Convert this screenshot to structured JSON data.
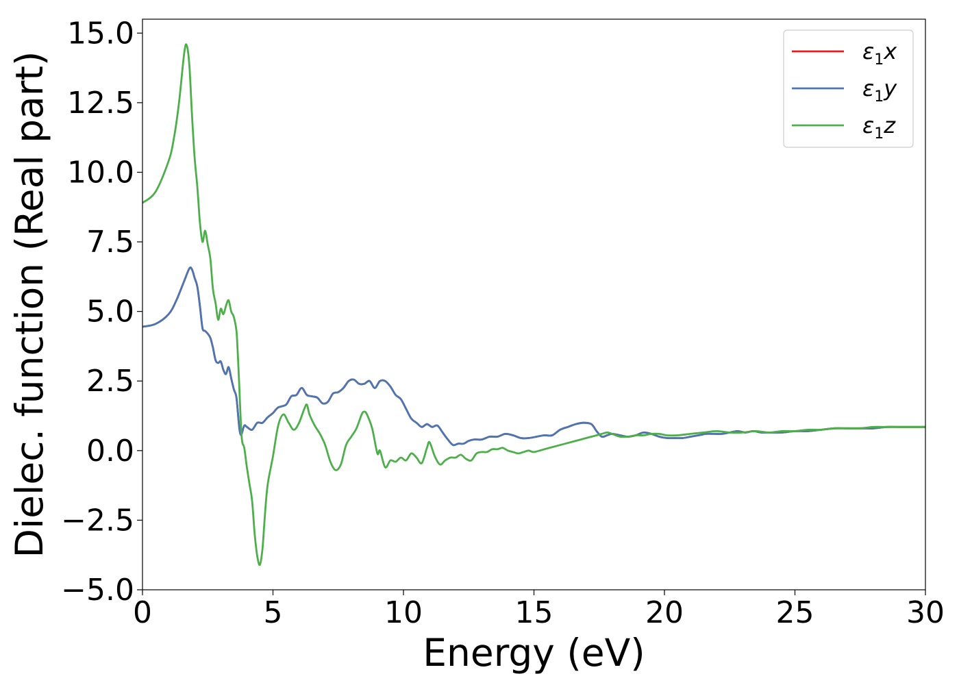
{
  "chart_data": {
    "type": "line",
    "xlabel": "Energy (eV)",
    "ylabel": "Dielec. function (Real part)",
    "xlim": [
      0,
      30
    ],
    "ylim": [
      -5.0,
      15.5
    ],
    "xticks": [
      0,
      5,
      10,
      15,
      20,
      25,
      30
    ],
    "xtick_labels": [
      "0",
      "5",
      "10",
      "15",
      "20",
      "25",
      "30"
    ],
    "yticks": [
      -5.0,
      -2.5,
      0.0,
      2.5,
      5.0,
      7.5,
      10.0,
      12.5,
      15.0
    ],
    "ytick_labels": [
      "−5.0",
      "−2.5",
      "0.0",
      "2.5",
      "5.0",
      "7.5",
      "10.0",
      "12.5",
      "15.0"
    ],
    "grid": false,
    "legend_position": "top-right",
    "series": [
      {
        "name": "ε₁x",
        "legend_base": "ε",
        "legend_sub": "1",
        "legend_var": "x",
        "color": "#e41a1c",
        "x": [
          0,
          0.5,
          1,
          1.3,
          1.6,
          1.8,
          1.9,
          2.0,
          2.1,
          2.2,
          2.3,
          2.4,
          2.5,
          2.6,
          2.7,
          2.8,
          2.9,
          3.0,
          3.1,
          3.2,
          3.3,
          3.4,
          3.5,
          3.6,
          3.7,
          3.75,
          3.8,
          3.9,
          4.0,
          4.2,
          4.4,
          4.6,
          4.8,
          5.0,
          5.2,
          5.5,
          5.7,
          5.9,
          6.1,
          6.3,
          6.5,
          6.7,
          6.9,
          7.1,
          7.3,
          7.5,
          7.7,
          7.9,
          8.1,
          8.3,
          8.5,
          8.7,
          8.9,
          9.1,
          9.3,
          9.5,
          9.7,
          9.9,
          10.1,
          10.3,
          10.5,
          10.7,
          10.9,
          11.1,
          11.3,
          11.5,
          11.7,
          11.9,
          12.1,
          12.3,
          12.5,
          12.7,
          13.0,
          13.3,
          13.6,
          13.9,
          14.2,
          14.5,
          14.8,
          15.1,
          15.4,
          15.7,
          16.0,
          16.3,
          16.6,
          16.9,
          17.2,
          17.4,
          17.6,
          17.8,
          18.0,
          18.3,
          18.6,
          18.9,
          19.2,
          19.5,
          19.8,
          20.1,
          20.4,
          20.7,
          21.0,
          21.3,
          21.6,
          21.9,
          22.2,
          22.5,
          22.8,
          23.1,
          23.4,
          23.7,
          24.0,
          24.5,
          25.0,
          25.5,
          26.0,
          26.5,
          27.0,
          27.5,
          28.0,
          28.5,
          29.0,
          29.5,
          30.0
        ],
        "y": [
          4.45,
          4.55,
          4.9,
          5.4,
          6.1,
          6.55,
          6.5,
          6.2,
          5.9,
          5.2,
          4.4,
          4.3,
          4.2,
          4.05,
          3.7,
          3.25,
          3.15,
          3.2,
          2.9,
          2.75,
          3.0,
          2.6,
          2.2,
          1.9,
          0.9,
          0.6,
          0.6,
          0.9,
          0.85,
          0.75,
          1.0,
          1.0,
          1.2,
          1.35,
          1.55,
          1.65,
          1.95,
          2.0,
          2.25,
          2.0,
          1.95,
          1.9,
          1.7,
          1.75,
          2.05,
          2.1,
          2.25,
          2.5,
          2.55,
          2.4,
          2.4,
          2.5,
          2.25,
          2.5,
          2.5,
          2.3,
          2.0,
          1.85,
          1.5,
          1.15,
          1.0,
          0.85,
          0.95,
          0.85,
          0.9,
          0.65,
          0.4,
          0.2,
          0.25,
          0.25,
          0.35,
          0.4,
          0.4,
          0.5,
          0.5,
          0.6,
          0.55,
          0.45,
          0.45,
          0.5,
          0.55,
          0.55,
          0.75,
          0.85,
          0.95,
          1.0,
          0.95,
          0.7,
          0.5,
          0.55,
          0.6,
          0.55,
          0.5,
          0.55,
          0.65,
          0.6,
          0.5,
          0.45,
          0.45,
          0.45,
          0.5,
          0.55,
          0.6,
          0.6,
          0.6,
          0.65,
          0.7,
          0.65,
          0.7,
          0.65,
          0.65,
          0.65,
          0.7,
          0.7,
          0.75,
          0.8,
          0.8,
          0.8,
          0.8,
          0.85,
          0.85,
          0.85,
          0.85
        ]
      },
      {
        "name": "ε₁y",
        "legend_base": "ε",
        "legend_sub": "1",
        "legend_var": "y",
        "color": "#4a77b4",
        "x": [
          0,
          0.5,
          1,
          1.3,
          1.6,
          1.8,
          1.9,
          2.0,
          2.1,
          2.2,
          2.3,
          2.4,
          2.5,
          2.6,
          2.7,
          2.8,
          2.9,
          3.0,
          3.1,
          3.2,
          3.3,
          3.4,
          3.5,
          3.6,
          3.7,
          3.75,
          3.8,
          3.9,
          4.0,
          4.2,
          4.4,
          4.6,
          4.8,
          5.0,
          5.2,
          5.5,
          5.7,
          5.9,
          6.1,
          6.3,
          6.5,
          6.7,
          6.9,
          7.1,
          7.3,
          7.5,
          7.7,
          7.9,
          8.1,
          8.3,
          8.5,
          8.7,
          8.9,
          9.1,
          9.3,
          9.5,
          9.7,
          9.9,
          10.1,
          10.3,
          10.5,
          10.7,
          10.9,
          11.1,
          11.3,
          11.5,
          11.7,
          11.9,
          12.1,
          12.3,
          12.5,
          12.7,
          13.0,
          13.3,
          13.6,
          13.9,
          14.2,
          14.5,
          14.8,
          15.1,
          15.4,
          15.7,
          16.0,
          16.3,
          16.6,
          16.9,
          17.2,
          17.4,
          17.6,
          17.8,
          18.0,
          18.3,
          18.6,
          18.9,
          19.2,
          19.5,
          19.8,
          20.1,
          20.4,
          20.7,
          21.0,
          21.3,
          21.6,
          21.9,
          22.2,
          22.5,
          22.8,
          23.1,
          23.4,
          23.7,
          24.0,
          24.5,
          25.0,
          25.5,
          26.0,
          26.5,
          27.0,
          27.5,
          28.0,
          28.5,
          29.0,
          29.5,
          30.0
        ],
        "y": [
          4.45,
          4.55,
          4.9,
          5.4,
          6.1,
          6.55,
          6.5,
          6.2,
          5.9,
          5.2,
          4.4,
          4.3,
          4.2,
          4.05,
          3.7,
          3.25,
          3.15,
          3.2,
          2.9,
          2.75,
          3.0,
          2.6,
          2.2,
          1.9,
          0.9,
          0.6,
          0.6,
          0.9,
          0.85,
          0.75,
          1.0,
          1.0,
          1.2,
          1.35,
          1.55,
          1.65,
          1.95,
          2.0,
          2.25,
          2.0,
          1.95,
          1.9,
          1.7,
          1.75,
          2.05,
          2.1,
          2.25,
          2.5,
          2.55,
          2.4,
          2.4,
          2.5,
          2.25,
          2.5,
          2.5,
          2.3,
          2.0,
          1.85,
          1.5,
          1.15,
          1.0,
          0.85,
          0.95,
          0.85,
          0.9,
          0.65,
          0.4,
          0.2,
          0.25,
          0.25,
          0.35,
          0.4,
          0.4,
          0.5,
          0.5,
          0.6,
          0.55,
          0.45,
          0.45,
          0.5,
          0.55,
          0.55,
          0.75,
          0.85,
          0.95,
          1.0,
          0.95,
          0.7,
          0.5,
          0.55,
          0.6,
          0.55,
          0.5,
          0.55,
          0.65,
          0.6,
          0.5,
          0.45,
          0.45,
          0.45,
          0.5,
          0.55,
          0.6,
          0.6,
          0.6,
          0.65,
          0.7,
          0.65,
          0.7,
          0.65,
          0.65,
          0.65,
          0.7,
          0.7,
          0.75,
          0.8,
          0.8,
          0.8,
          0.8,
          0.85,
          0.85,
          0.85,
          0.85
        ]
      },
      {
        "name": "ε₁z",
        "legend_base": "ε",
        "legend_sub": "1",
        "legend_var": "z",
        "color": "#4daf4a",
        "x": [
          0,
          0.5,
          1,
          1.2,
          1.4,
          1.6,
          1.7,
          1.8,
          1.9,
          2.0,
          2.1,
          2.2,
          2.3,
          2.4,
          2.5,
          2.6,
          2.7,
          2.8,
          2.9,
          3.0,
          3.1,
          3.2,
          3.3,
          3.4,
          3.5,
          3.6,
          3.65,
          3.7,
          3.8,
          3.9,
          4.0,
          4.1,
          4.2,
          4.3,
          4.4,
          4.5,
          4.6,
          4.7,
          4.8,
          5.0,
          5.2,
          5.4,
          5.6,
          5.8,
          6.0,
          6.2,
          6.3,
          6.4,
          6.6,
          6.8,
          7.0,
          7.2,
          7.4,
          7.6,
          7.8,
          8.0,
          8.2,
          8.4,
          8.5,
          8.6,
          8.8,
          9.0,
          9.1,
          9.3,
          9.5,
          9.7,
          9.9,
          10.1,
          10.3,
          10.5,
          10.7,
          10.9,
          11.0,
          11.2,
          11.4,
          11.6,
          11.8,
          12.0,
          12.2,
          12.4,
          12.6,
          12.8,
          13.0,
          13.2,
          13.4,
          13.6,
          13.8,
          14.0,
          14.2,
          14.4,
          14.6,
          14.8,
          15.0,
          15.4,
          15.8,
          16.2,
          16.6,
          17.0,
          17.4,
          17.6,
          17.8,
          18.0,
          18.3,
          18.6,
          18.9,
          19.2,
          19.5,
          19.8,
          20.1,
          20.5,
          21.0,
          21.5,
          22.0,
          22.5,
          23.0,
          23.5,
          24.0,
          24.5,
          25.0,
          25.5,
          26.0,
          26.5,
          27.0,
          27.5,
          28.0,
          28.5,
          29.0,
          29.5,
          30.0
        ],
        "y": [
          8.9,
          9.3,
          10.4,
          11.2,
          12.5,
          14.3,
          14.55,
          13.8,
          12.0,
          10.5,
          9.5,
          8.2,
          7.5,
          7.9,
          7.4,
          6.9,
          5.8,
          5.3,
          4.7,
          5.1,
          4.9,
          5.2,
          5.4,
          5.0,
          4.8,
          4.3,
          3.5,
          2.5,
          0.5,
          0.1,
          -0.6,
          -1.2,
          -1.8,
          -3.0,
          -3.8,
          -4.1,
          -3.5,
          -2.2,
          -1.2,
          -0.2,
          0.9,
          1.3,
          1.0,
          0.75,
          1.0,
          1.5,
          1.65,
          1.3,
          0.9,
          0.6,
          0.2,
          -0.4,
          -0.7,
          -0.5,
          0.2,
          0.5,
          0.8,
          1.3,
          1.4,
          1.3,
          0.8,
          -0.1,
          0.0,
          -0.6,
          -0.35,
          -0.4,
          -0.25,
          -0.35,
          -0.1,
          -0.25,
          -0.45,
          0.1,
          0.3,
          -0.2,
          -0.5,
          -0.35,
          -0.25,
          -0.25,
          -0.15,
          -0.3,
          -0.35,
          -0.1,
          -0.05,
          -0.05,
          0.05,
          0.05,
          0.1,
          0.0,
          -0.05,
          -0.1,
          -0.05,
          0.0,
          -0.05,
          0.05,
          0.15,
          0.25,
          0.35,
          0.45,
          0.55,
          0.6,
          0.65,
          0.6,
          0.5,
          0.5,
          0.55,
          0.55,
          0.6,
          0.6,
          0.55,
          0.55,
          0.6,
          0.65,
          0.7,
          0.65,
          0.65,
          0.7,
          0.65,
          0.7,
          0.7,
          0.75,
          0.75,
          0.8,
          0.8,
          0.8,
          0.85,
          0.85,
          0.85,
          0.85,
          0.85
        ]
      }
    ]
  }
}
